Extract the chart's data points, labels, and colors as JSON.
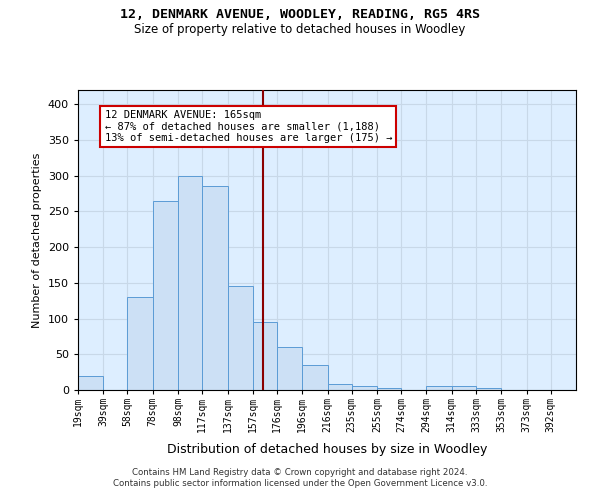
{
  "title_line1": "12, DENMARK AVENUE, WOODLEY, READING, RG5 4RS",
  "title_line2": "Size of property relative to detached houses in Woodley",
  "xlabel": "Distribution of detached houses by size in Woodley",
  "ylabel": "Number of detached properties",
  "bar_edges": [
    19,
    39,
    58,
    78,
    98,
    117,
    137,
    157,
    176,
    196,
    216,
    235,
    255,
    274,
    294,
    314,
    333,
    353,
    373,
    392,
    412
  ],
  "bar_heights": [
    20,
    0,
    130,
    265,
    300,
    285,
    145,
    95,
    60,
    35,
    8,
    5,
    3,
    0,
    5,
    5,
    3,
    0,
    0,
    0
  ],
  "bar_face_color": "#cce0f5",
  "bar_edge_color": "#5b9bd5",
  "property_value": 165,
  "vline_color": "#8b0000",
  "annotation_text": "12 DENMARK AVENUE: 165sqm\n← 87% of detached houses are smaller (1,188)\n13% of semi-detached houses are larger (175) →",
  "annotation_box_color": "#ffffff",
  "annotation_box_edge": "#cc0000",
  "grid_color": "#c8d8e8",
  "plot_bg_color": "#ddeeff",
  "footer_line1": "Contains HM Land Registry data © Crown copyright and database right 2024.",
  "footer_line2": "Contains public sector information licensed under the Open Government Licence v3.0.",
  "ylim": [
    0,
    420
  ],
  "yticks": [
    0,
    50,
    100,
    150,
    200,
    250,
    300,
    350,
    400
  ]
}
